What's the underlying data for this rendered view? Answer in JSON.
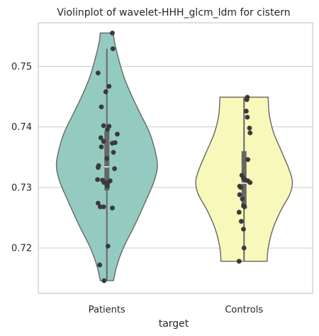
{
  "chart_data": {
    "type": "violin",
    "title": "Violinplot of wavelet-HHH_glcm_ldm for cistern",
    "xlabel": "target",
    "ylabel": "",
    "categories": [
      "Patients",
      "Controls"
    ],
    "ylim": [
      0.7125,
      0.7572
    ],
    "yticks": [
      0.72,
      0.73,
      0.74,
      0.75
    ],
    "ytick_labels": [
      "0.72",
      "0.73",
      "0.74",
      "0.75"
    ],
    "grid": true,
    "colors": {
      "Patients": "#94cbc0",
      "Controls": "#f8f8bb",
      "outline": "#666666",
      "points": "#3a3a3a",
      "grid": "#cccccc",
      "spine": "#cccccc"
    },
    "violins": [
      {
        "category": "Patients",
        "min": 0.7146,
        "max": 0.7555,
        "whisker_low": 0.7146,
        "whisker_high": 0.7529,
        "q1": 0.7295,
        "q3": 0.7394,
        "median": 0.7334,
        "width_profile": [
          [
            0.7146,
            0.12
          ],
          [
            0.717,
            0.18
          ],
          [
            0.72,
            0.3
          ],
          [
            0.724,
            0.52
          ],
          [
            0.728,
            0.72
          ],
          [
            0.731,
            0.86
          ],
          [
            0.7335,
            0.92
          ],
          [
            0.736,
            0.88
          ],
          [
            0.739,
            0.78
          ],
          [
            0.742,
            0.62
          ],
          [
            0.745,
            0.46
          ],
          [
            0.748,
            0.32
          ],
          [
            0.751,
            0.22
          ],
          [
            0.754,
            0.14
          ],
          [
            0.7555,
            0.12
          ]
        ],
        "points": [
          [
            0.7555,
            0.1
          ],
          [
            0.7529,
            0.11
          ],
          [
            0.7489,
            -0.16
          ],
          [
            0.7467,
            0.04
          ],
          [
            0.7458,
            -0.02
          ],
          [
            0.7433,
            -0.1
          ],
          [
            0.7402,
            -0.06
          ],
          [
            0.7401,
            0.04
          ],
          [
            0.7396,
            0.01
          ],
          [
            0.7388,
            0.19
          ],
          [
            0.7382,
            -0.11
          ],
          [
            0.7374,
            0.15
          ],
          [
            0.7373,
            0.1
          ],
          [
            0.7376,
            -0.06
          ],
          [
            0.7367,
            -0.1
          ],
          [
            0.7358,
            0.12
          ],
          [
            0.7348,
            0.0
          ],
          [
            0.7336,
            -0.15
          ],
          [
            0.7333,
            -0.16
          ],
          [
            0.7331,
            0.14
          ],
          [
            0.7313,
            -0.17
          ],
          [
            0.7312,
            -0.08
          ],
          [
            0.7311,
            0.06
          ],
          [
            0.7308,
            -0.05
          ],
          [
            0.7308,
            0.02
          ],
          [
            0.7307,
            -0.01
          ],
          [
            0.7302,
            0.01
          ],
          [
            0.7274,
            -0.16
          ],
          [
            0.7268,
            -0.12
          ],
          [
            0.7268,
            -0.06
          ],
          [
            0.7266,
            0.1
          ],
          [
            0.7203,
            0.02
          ],
          [
            0.7172,
            -0.13
          ],
          [
            0.7146,
            -0.05
          ]
        ]
      },
      {
        "category": "Controls",
        "min": 0.7178,
        "max": 0.7449,
        "whisker_low": 0.7178,
        "whisker_high": 0.7449,
        "q1": 0.7266,
        "q3": 0.736,
        "median": 0.7307,
        "width_profile": [
          [
            0.7178,
            0.42
          ],
          [
            0.72,
            0.44
          ],
          [
            0.723,
            0.52
          ],
          [
            0.726,
            0.66
          ],
          [
            0.729,
            0.84
          ],
          [
            0.731,
            0.88
          ],
          [
            0.733,
            0.82
          ],
          [
            0.736,
            0.68
          ],
          [
            0.739,
            0.54
          ],
          [
            0.742,
            0.46
          ],
          [
            0.7449,
            0.44
          ]
        ],
        "points": [
          [
            0.7449,
            0.06
          ],
          [
            0.7445,
            0.05
          ],
          [
            0.7426,
            0.04
          ],
          [
            0.7416,
            0.06
          ],
          [
            0.7398,
            0.1
          ],
          [
            0.739,
            0.11
          ],
          [
            0.7346,
            0.07
          ],
          [
            0.732,
            -0.04
          ],
          [
            0.7315,
            -0.01
          ],
          [
            0.7312,
            0.03
          ],
          [
            0.7311,
            0.07
          ],
          [
            0.7308,
            0.11
          ],
          [
            0.7302,
            -0.08
          ],
          [
            0.73,
            -0.06
          ],
          [
            0.7288,
            -0.08
          ],
          [
            0.7281,
            -0.03
          ],
          [
            0.727,
            -0.01
          ],
          [
            0.7268,
            0.01
          ],
          [
            0.7259,
            -0.09
          ],
          [
            0.7244,
            -0.05
          ],
          [
            0.7231,
            -0.01
          ],
          [
            0.72,
            0.0
          ],
          [
            0.7178,
            -0.09
          ]
        ]
      }
    ]
  }
}
